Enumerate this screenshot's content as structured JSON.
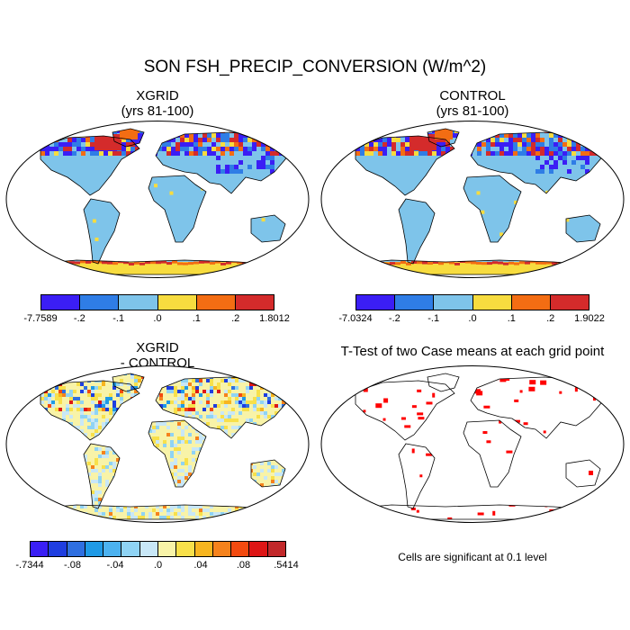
{
  "title": "SON FSH_PRECIP_CONVERSION (W/m^2)",
  "panels": {
    "top_left": {
      "title": "XGRID",
      "subtitle": "(yrs 81-100)"
    },
    "top_right": {
      "title": "CONTROL",
      "subtitle": "(yrs 81-100)"
    },
    "bottom_left": {
      "title": "XGRID",
      "subtitle": "- CONTROL"
    },
    "bottom_right": {
      "title": "T-Test of two Case means at each grid point",
      "note": "Cells are significant at 0.1 level"
    }
  },
  "colorbars": {
    "top_left": {
      "colors": [
        "#3b1ef5",
        "#2f7de6",
        "#7ec4ea",
        "#f7dc3f",
        "#f36d13",
        "#d42b2b"
      ],
      "labels": [
        "-7.7589",
        "-.2",
        "-.1",
        ".0",
        ".1",
        ".2",
        "1.8012"
      ]
    },
    "top_right": {
      "colors": [
        "#3b1ef5",
        "#2f7de6",
        "#7ec4ea",
        "#f7dc3f",
        "#f36d13",
        "#d42b2b"
      ],
      "labels": [
        "-7.0324",
        "-.2",
        "-.1",
        ".0",
        ".1",
        ".2",
        "1.9022"
      ]
    },
    "diff": {
      "colors": [
        "#3a1ff5",
        "#1f3ee0",
        "#2f6fe0",
        "#1f9ae6",
        "#4cb2f0",
        "#8fd3f4",
        "#c8e7f7",
        "#f8f3a8",
        "#f8e04a",
        "#f7b51f",
        "#f5821c",
        "#f34a10",
        "#de1616",
        "#c2282a"
      ],
      "labels": [
        "-.7344",
        "-.08",
        "-.04",
        ".0",
        ".04",
        ".08",
        ".5414"
      ]
    }
  },
  "colors": {
    "ocean": "#ffffff",
    "land_base": "#7ec4ea",
    "diff_land_base": "#f8f3a8",
    "significant": "#ff0000",
    "coastline": "#000000"
  }
}
